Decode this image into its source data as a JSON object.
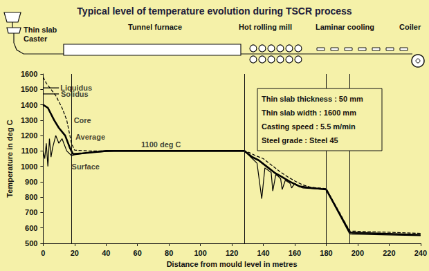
{
  "chart_data": {
    "type": "line",
    "title": "Typical level of temperature evolution during TSCR process",
    "x_label": "Distance from mould level in metres",
    "y_label": "Temperature in deg C",
    "xlim": [
      0,
      240
    ],
    "xticks": [
      0,
      20,
      40,
      60,
      80,
      100,
      120,
      140,
      160,
      180,
      200,
      220,
      240
    ],
    "ylim": [
      500,
      1600
    ],
    "yticks": [
      500,
      600,
      700,
      800,
      900,
      1000,
      1100,
      1200,
      1300,
      1400,
      1500,
      1600
    ],
    "grid": false,
    "series": [
      {
        "name": "Liquidus",
        "color": "#000000",
        "line_style": "solid",
        "x": [
          0,
          10
        ],
        "values": [
          1510,
          1510
        ]
      },
      {
        "name": "Solidus",
        "color": "#000000",
        "line_style": "solid",
        "x": [
          0,
          10
        ],
        "values": [
          1470,
          1470
        ]
      },
      {
        "name": "Core",
        "color": "#000000",
        "line_style": "dashed",
        "x": [
          0,
          2,
          5,
          8,
          10,
          12,
          15,
          18,
          20,
          30,
          128,
          131,
          135,
          140,
          145,
          150,
          155,
          160,
          165,
          170,
          180,
          195,
          240
        ],
        "values": [
          1580,
          1540,
          1500,
          1460,
          1420,
          1380,
          1300,
          1150,
          1105,
          1100,
          1100,
          1090,
          1070,
          1050,
          1010,
          970,
          935,
          905,
          880,
          865,
          855,
          580,
          565
        ]
      },
      {
        "name": "Average",
        "color": "#000000",
        "line_style": "thick",
        "x": [
          0,
          3,
          7,
          10,
          14,
          17,
          19,
          25,
          40,
          128,
          133,
          137,
          142,
          147,
          152,
          157,
          163,
          170,
          180,
          195,
          240
        ],
        "values": [
          1400,
          1380,
          1300,
          1250,
          1200,
          1120,
          1080,
          1085,
          1100,
          1100,
          1060,
          1040,
          1000,
          960,
          930,
          900,
          870,
          860,
          850,
          570,
          555
        ]
      },
      {
        "name": "Surface",
        "color": "#000000",
        "line_style": "solid",
        "x": [
          0,
          1,
          2,
          3,
          4,
          5,
          6,
          8,
          10,
          12,
          15,
          18,
          20,
          30,
          45,
          128,
          132,
          136,
          139,
          141,
          145,
          146,
          148,
          151,
          152,
          154,
          157,
          158,
          160,
          163,
          165,
          180,
          195,
          240
        ],
        "values": [
          1100,
          1050,
          1150,
          1000,
          1180,
          1060,
          1120,
          1200,
          1150,
          1180,
          1100,
          1070,
          1075,
          1090,
          1100,
          1100,
          1060,
          1020,
          790,
          990,
          960,
          840,
          950,
          920,
          850,
          910,
          890,
          860,
          890,
          870,
          860,
          850,
          560,
          550
        ]
      }
    ],
    "annotations": [
      {
        "text": "Liquidus",
        "x": 21,
        "y": 1510
      },
      {
        "text": "Solidus",
        "x": 20,
        "y": 1468
      },
      {
        "text": "Core",
        "x": 25,
        "y": 1300
      },
      {
        "text": "Average",
        "x": 30,
        "y": 1190
      },
      {
        "text": "Surface",
        "x": 27,
        "y": 1000
      },
      {
        "text": "1100 deg C",
        "x": 75,
        "y": 1140
      }
    ],
    "vertical_lines": [
      18,
      128,
      180,
      195
    ],
    "equipment": {
      "caster": "Thin slab\nCaster",
      "furnace": "Tunnel furnace",
      "mill": "Hot rolling mill",
      "cooling": "Laminar cooling",
      "coiler": "Coiler"
    },
    "info_box": [
      "Thin slab thickness : 50 mm",
      "Thin slab width : 1600 mm",
      "Casting speed : 5.5 m/min",
      "Steel grade : Steel 45"
    ]
  }
}
